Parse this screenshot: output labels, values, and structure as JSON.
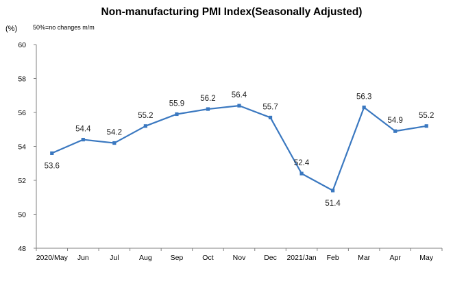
{
  "chart_data": {
    "type": "line",
    "title": "Non-manufacturing PMI Index(Seasonally Adjusted)",
    "unit_label": "(%)",
    "note": "50%=no changes  m/m",
    "categories": [
      "2020/May",
      "Jun",
      "Jul",
      "Aug",
      "Sep",
      "Oct",
      "Nov",
      "Dec",
      "2021/Jan",
      "Feb",
      "Mar",
      "Apr",
      "May"
    ],
    "series": [
      {
        "values": [
          53.6,
          54.4,
          54.2,
          55.2,
          55.9,
          56.2,
          56.4,
          55.7,
          52.4,
          51.4,
          56.3,
          54.9,
          55.2
        ]
      }
    ],
    "data_labels": [
      "53.6",
      "54.4",
      "54.2",
      "55.2",
      "55.9",
      "56.2",
      "56.4",
      "55.7",
      "52.4",
      "51.4",
      "56.3",
      "54.9",
      "55.2"
    ],
    "label_positions": [
      "below",
      "above",
      "above",
      "above",
      "above",
      "above",
      "above",
      "above",
      "above",
      "below",
      "above",
      "above",
      "above"
    ],
    "ylim": [
      48,
      60
    ],
    "yticks": [
      "48",
      "50",
      "52",
      "54",
      "56",
      "58",
      "60"
    ],
    "xlabel": "",
    "ylabel": "",
    "grid": false,
    "legend": "none",
    "line_color": "#3a78c0",
    "marker_color": "#3a78c0",
    "axis_color": "#808080"
  }
}
